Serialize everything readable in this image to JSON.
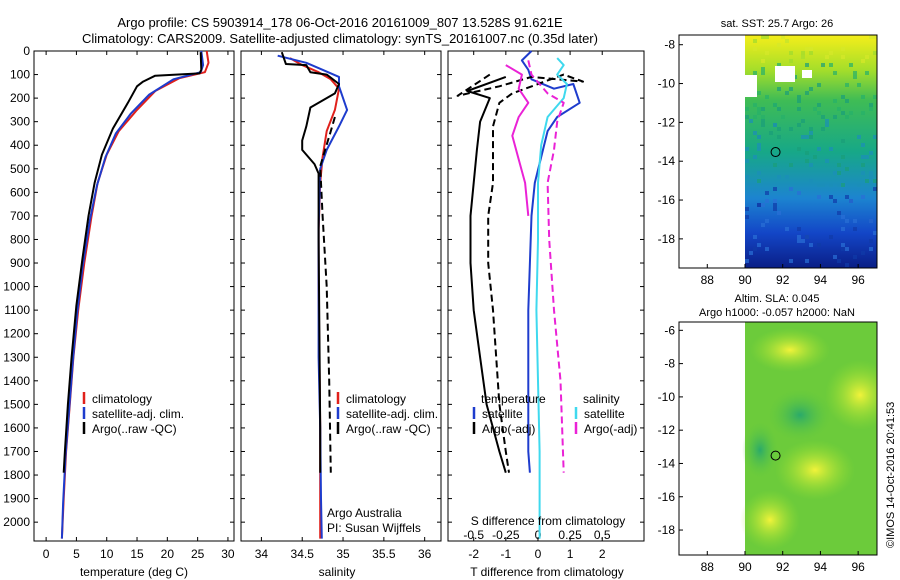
{
  "header": {
    "title_line1": "Argo profile: CS 5903914_178 06-Oct-2016 20161009_807 13.528S 91.621E",
    "title_line2": "Climatology: CARS2009. Satellite-adjusted climatology: synTS_20161007.nc (0.35d later)"
  },
  "side_text": "©IMOS 14-Oct-2016 20:41:53",
  "colors": {
    "climatology": "#e0201b",
    "satellite": "#1e3ccd",
    "argo": "#000000",
    "satellite_salinity": "#3fd9ee",
    "argo_salinity": "#ea22d6"
  },
  "chart_data": [
    {
      "id": "temperature",
      "type": "line",
      "xlabel": "temperature (deg C)",
      "ylabel": "",
      "xlim": [
        -2,
        31
      ],
      "ylim": [
        2080,
        0
      ],
      "xticks": [
        0,
        5,
        10,
        15,
        20,
        25,
        30
      ],
      "yticks": [
        0,
        100,
        200,
        300,
        400,
        500,
        600,
        700,
        800,
        900,
        1000,
        1100,
        1200,
        1300,
        1400,
        1500,
        1600,
        1700,
        1800,
        1900,
        2000
      ],
      "legend": [
        "climatology",
        "satellite-adj. clim.",
        "Argo(..raw -QC)"
      ],
      "legend_placement": "lower-right",
      "series": [
        {
          "name": "climatology",
          "color": "#e0201b",
          "style": "solid",
          "points": [
            [
              26.5,
              0
            ],
            [
              26.8,
              50
            ],
            [
              26.2,
              90
            ],
            [
              22,
              115
            ],
            [
              18,
              170
            ],
            [
              15,
              250
            ],
            [
              12,
              340
            ],
            [
              10,
              440
            ],
            [
              8.5,
              560
            ],
            [
              7.5,
              700
            ],
            [
              6.3,
              900
            ],
            [
              5.3,
              1100
            ],
            [
              4.5,
              1300
            ],
            [
              3.9,
              1500
            ],
            [
              3.3,
              1700
            ],
            [
              2.9,
              1900
            ],
            [
              2.6,
              2070
            ]
          ]
        },
        {
          "name": "satellite-adj. clim.",
          "color": "#1e3ccd",
          "style": "solid",
          "points": [
            [
              25.6,
              0
            ],
            [
              25.9,
              60
            ],
            [
              25.5,
              90
            ],
            [
              21,
              120
            ],
            [
              17,
              185
            ],
            [
              14,
              265
            ],
            [
              11.5,
              350
            ],
            [
              9.8,
              450
            ],
            [
              8.4,
              570
            ],
            [
              7.2,
              720
            ],
            [
              6,
              920
            ],
            [
              5.1,
              1120
            ],
            [
              4.4,
              1320
            ],
            [
              3.8,
              1520
            ],
            [
              3.2,
              1720
            ],
            [
              2.8,
              1920
            ],
            [
              2.6,
              2070
            ]
          ]
        },
        {
          "name": "Argo(..raw -QC)",
          "color": "#000000",
          "style": "solid",
          "points": [
            [
              25.5,
              5
            ],
            [
              25.6,
              80
            ],
            [
              25.3,
              95
            ],
            [
              18,
              105
            ],
            [
              16,
              130
            ],
            [
              15,
              150
            ],
            [
              13.5,
              220
            ],
            [
              11,
              330
            ],
            [
              9.2,
              440
            ],
            [
              8,
              560
            ],
            [
              7,
              700
            ],
            [
              6,
              880
            ],
            [
              5,
              1080
            ],
            [
              4.2,
              1300
            ],
            [
              3.6,
              1500
            ],
            [
              3.1,
              1700
            ],
            [
              2.9,
              1790
            ]
          ]
        }
      ]
    },
    {
      "id": "salinity",
      "type": "line",
      "xlabel": "salinity",
      "ylabel": "",
      "xlim": [
        33.75,
        36.2
      ],
      "ylim": [
        2080,
        0
      ],
      "xticks": [
        34,
        34.5,
        35,
        35.5,
        36
      ],
      "legend": [
        "climatology",
        "satellite-adj. clim.",
        "Argo(..raw -QC)"
      ],
      "legend_placement": "lower-right",
      "annotation": [
        "Argo Australia",
        "PI: Susan Wijffels"
      ],
      "series": [
        {
          "name": "climatology",
          "color": "#e0201b",
          "style": "solid",
          "points": [
            [
              34.35,
              30
            ],
            [
              34.5,
              60
            ],
            [
              34.7,
              90
            ],
            [
              34.85,
              120
            ],
            [
              34.95,
              160
            ],
            [
              34.9,
              250
            ],
            [
              34.8,
              340
            ],
            [
              34.75,
              450
            ],
            [
              34.72,
              560
            ],
            [
              34.7,
              760
            ],
            [
              34.7,
              1000
            ],
            [
              34.71,
              1300
            ],
            [
              34.72,
              1600
            ],
            [
              34.72,
              1900
            ],
            [
              34.72,
              2070
            ]
          ]
        },
        {
          "name": "satellite-adj. clim.",
          "color": "#1e3ccd",
          "style": "solid",
          "points": [
            [
              34.2,
              20
            ],
            [
              34.55,
              50
            ],
            [
              34.75,
              80
            ],
            [
              34.95,
              110
            ],
            [
              34.95,
              150
            ],
            [
              35.05,
              250
            ],
            [
              34.95,
              320
            ],
            [
              34.8,
              420
            ],
            [
              34.72,
              500
            ],
            [
              34.7,
              750
            ],
            [
              34.7,
              1000
            ],
            [
              34.7,
              1300
            ],
            [
              34.72,
              1600
            ],
            [
              34.73,
              1900
            ],
            [
              34.74,
              2070
            ]
          ]
        },
        {
          "name": "Argo(..raw -QC)",
          "color": "#000000",
          "style": "solid",
          "points": [
            [
              34.25,
              5
            ],
            [
              34.3,
              55
            ],
            [
              34.55,
              60
            ],
            [
              34.6,
              90
            ],
            [
              34.8,
              100
            ],
            [
              34.95,
              140
            ],
            [
              34.9,
              180
            ],
            [
              34.6,
              240
            ],
            [
              34.55,
              320
            ],
            [
              34.5,
              380
            ],
            [
              34.5,
              420
            ],
            [
              34.65,
              480
            ],
            [
              34.7,
              520
            ],
            [
              34.7,
              800
            ],
            [
              34.71,
              1200
            ],
            [
              34.72,
              1600
            ],
            [
              34.72,
              1790
            ]
          ]
        },
        {
          "name": "Argo dashed",
          "color": "#000000",
          "style": "dashed",
          "points": [
            [
              34.9,
              280
            ],
            [
              34.85,
              340
            ],
            [
              34.78,
              420
            ],
            [
              34.72,
              490
            ],
            [
              34.75,
              700
            ],
            [
              34.8,
              1000
            ],
            [
              34.83,
              1400
            ],
            [
              34.85,
              1790
            ]
          ]
        }
      ]
    },
    {
      "id": "difference",
      "type": "line",
      "xlabel": "T difference from climatology",
      "xlabel_top": "S difference from climatology",
      "ylabel": "",
      "xlim": [
        -2.8,
        3.3
      ],
      "ylim": [
        2080,
        0
      ],
      "xticks": [
        -2,
        -1,
        0,
        1,
        2
      ],
      "xticklabels_top": [
        "-0.5",
        "-0.25",
        "0",
        "0.25",
        "0.5"
      ],
      "legend_left_title": "temperature",
      "legend_left": [
        "satellite",
        "Argo(-adj)"
      ],
      "legend_right_title": "salinity",
      "legend_right": [
        "satellite",
        "Argo(-adj)"
      ],
      "legend_placement": "lower-center",
      "series": [
        {
          "name": "temperature satellite",
          "color": "#1e3ccd",
          "style": "solid",
          "points": [
            [
              -0.2,
              0
            ],
            [
              -0.5,
              40
            ],
            [
              -0.3,
              80
            ],
            [
              -0.2,
              120
            ],
            [
              0.5,
              160
            ],
            [
              1.1,
              140
            ],
            [
              1.3,
              220
            ],
            [
              0.6,
              280
            ],
            [
              0.3,
              340
            ],
            [
              0.1,
              450
            ],
            [
              -0.1,
              560
            ],
            [
              -0.2,
              700
            ],
            [
              -0.25,
              900
            ],
            [
              -0.3,
              1100
            ],
            [
              -0.3,
              1300
            ],
            [
              -0.3,
              1500
            ],
            [
              -0.3,
              1700
            ],
            [
              -0.25,
              1790
            ]
          ]
        },
        {
          "name": "temperature Argo(-adj)",
          "color": "#000000",
          "style": "dashed",
          "points": [
            [
              -1.5,
              100
            ],
            [
              -2.5,
              190
            ],
            [
              -1.2,
              150
            ],
            [
              -0.2,
              110
            ],
            [
              1.4,
              130
            ],
            [
              0.8,
              100
            ],
            [
              -0.8,
              180
            ],
            [
              -1.2,
              220
            ],
            [
              -1.4,
              320
            ],
            [
              -1.4,
              420
            ],
            [
              -1.4,
              560
            ],
            [
              -1.55,
              700
            ],
            [
              -1.55,
              900
            ],
            [
              -1.4,
              1100
            ],
            [
              -1.3,
              1300
            ],
            [
              -1.2,
              1500
            ],
            [
              -1.0,
              1700
            ],
            [
              -0.9,
              1790
            ]
          ]
        },
        {
          "name": "temperature Argo(-adj) solid",
          "color": "#000000",
          "style": "solid",
          "points": [
            [
              -1,
              110
            ],
            [
              -2.2,
              170
            ],
            [
              -1.5,
              200
            ],
            [
              -1.8,
              300
            ],
            [
              -1.9,
              420
            ],
            [
              -2,
              560
            ],
            [
              -2.1,
              700
            ],
            [
              -2.1,
              900
            ],
            [
              -2,
              1100
            ],
            [
              -1.8,
              1300
            ],
            [
              -1.6,
              1500
            ],
            [
              -1.2,
              1700
            ],
            [
              -1,
              1790
            ]
          ]
        },
        {
          "name": "salinity satellite",
          "color": "#3fd9ee",
          "style": "solid",
          "points": [
            [
              0.6,
              30
            ],
            [
              0.8,
              60
            ],
            [
              0.6,
              100
            ],
            [
              0.9,
              140
            ],
            [
              0.8,
              200
            ],
            [
              0.3,
              280
            ],
            [
              0.1,
              400
            ],
            [
              0,
              560
            ],
            [
              0,
              800
            ],
            [
              -0.05,
              1100
            ],
            [
              0,
              1400
            ],
            [
              0.05,
              1700
            ],
            [
              0.05,
              2070
            ]
          ]
        },
        {
          "name": "salinity Argo(-adj)",
          "color": "#ea22d6",
          "style": "dashed",
          "points": [
            [
              -0.3,
              40
            ],
            [
              -0.2,
              100
            ],
            [
              0.3,
              180
            ],
            [
              0.8,
              220
            ],
            [
              0.6,
              300
            ],
            [
              0.5,
              420
            ],
            [
              0.3,
              560
            ],
            [
              0.35,
              800
            ],
            [
              0.5,
              1100
            ],
            [
              0.7,
              1400
            ],
            [
              0.8,
              1790
            ]
          ]
        },
        {
          "name": "salinity Argo(-adj) solid",
          "color": "#ea22d6",
          "style": "solid",
          "points": [
            [
              -1,
              60
            ],
            [
              -0.5,
              100
            ],
            [
              -0.6,
              160
            ],
            [
              -0.3,
              220
            ],
            [
              -0.6,
              280
            ],
            [
              -0.8,
              360
            ],
            [
              -0.6,
              460
            ],
            [
              -0.4,
              560
            ],
            [
              -0.3,
              700
            ]
          ]
        }
      ]
    },
    {
      "id": "sst_map",
      "type": "heatmap",
      "title": "sat. SST: 25.7 Argo: 26",
      "xlim": [
        86.5,
        97
      ],
      "ylim": [
        -19.5,
        -7.5
      ],
      "xticks": [
        88,
        90,
        92,
        94,
        96
      ],
      "yticks": [
        -8,
        -10,
        -12,
        -14,
        -16,
        -18
      ],
      "data_region_lon": [
        90,
        97
      ],
      "marker": {
        "lon": 91.621,
        "lat": -13.528
      }
    },
    {
      "id": "sla_map",
      "type": "heatmap",
      "title_line1": "Altim. SLA: 0.045",
      "title_line2": "Argo h1000: -0.057 h2000: NaN",
      "xlim": [
        86.5,
        97
      ],
      "ylim": [
        -19.5,
        -5.5
      ],
      "xticks": [
        88,
        90,
        92,
        94,
        96
      ],
      "yticks": [
        -6,
        -8,
        -10,
        -12,
        -14,
        -16,
        -18
      ],
      "data_region_lon": [
        90,
        97
      ],
      "marker": {
        "lon": 91.621,
        "lat": -13.528
      }
    }
  ]
}
